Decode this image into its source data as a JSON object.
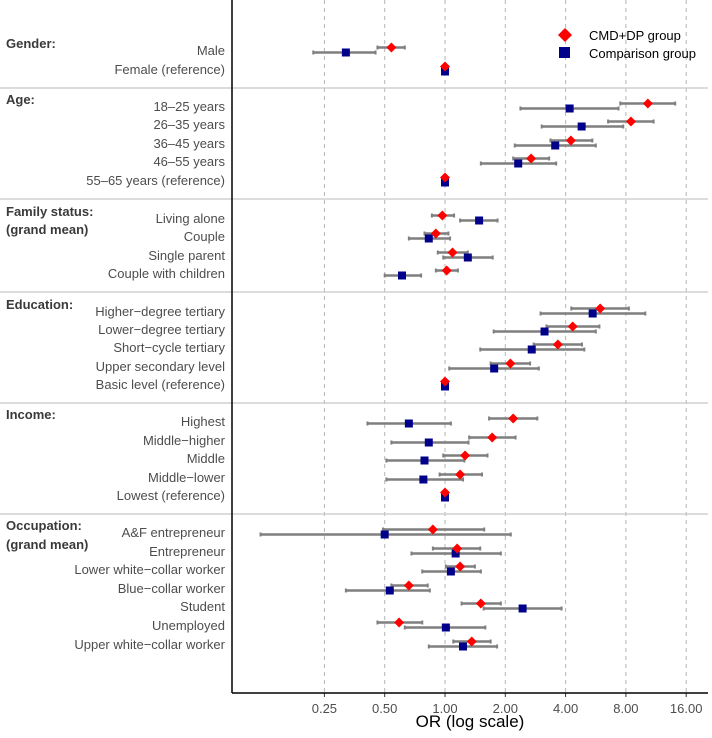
{
  "chart_data": {
    "type": "forest",
    "xlabel": "OR (log scale)",
    "xscale": "log2",
    "xlim": [
      0.11,
      17
    ],
    "xticks": [
      0.25,
      0.5,
      1,
      2,
      4,
      8,
      16
    ],
    "xtick_labels": [
      "0.25",
      "0.50",
      "1.00",
      "2.00",
      "4.00",
      "8.00",
      "16.00"
    ],
    "grid": "vertical dashed",
    "legend": {
      "placement": "top-right",
      "entries": [
        {
          "name": "CMD+DP group",
          "color": "#ff0000",
          "marker": "diamond"
        },
        {
          "name": "Comparison group",
          "color": "#00008b",
          "marker": "square"
        }
      ]
    },
    "groups": [
      {
        "title": "Gender:",
        "subtitle": "",
        "rows": [
          {
            "label": "Male",
            "cmd": [
              0.54,
              0.46,
              0.63
            ],
            "comp": [
              0.32,
              0.22,
              0.45
            ]
          },
          {
            "label": "Female (reference)",
            "cmd": [
              1,
              1,
              1
            ],
            "comp": [
              1,
              1,
              1
            ]
          }
        ]
      },
      {
        "title": "Age:",
        "subtitle": "",
        "rows": [
          {
            "label": "18–25 years",
            "cmd": [
              10.3,
              7.5,
              14.1
            ],
            "comp": [
              4.19,
              2.38,
              7.35
            ]
          },
          {
            "label": "26–35 years",
            "cmd": [
              8.48,
              6.52,
              11.0
            ],
            "comp": [
              4.81,
              3.04,
              7.76
            ]
          },
          {
            "label": "36–45 years",
            "cmd": [
              4.25,
              3.36,
              5.44
            ],
            "comp": [
              3.55,
              2.23,
              5.66
            ]
          },
          {
            "label": "46–55 years",
            "cmd": [
              2.69,
              2.19,
              3.31
            ],
            "comp": [
              2.32,
              1.51,
              3.59
            ]
          },
          {
            "label": "55–65 years (reference)",
            "cmd": [
              1,
              1,
              1
            ],
            "comp": [
              1,
              1,
              1
            ]
          }
        ]
      },
      {
        "title": "Family status:",
        "subtitle": "(grand mean)",
        "rows": [
          {
            "label": "Living alone",
            "cmd": [
              0.97,
              0.86,
              1.11
            ],
            "comp": [
              1.48,
              1.19,
              1.83
            ]
          },
          {
            "label": "Couple",
            "cmd": [
              0.9,
              0.79,
              1.04
            ],
            "comp": [
              0.83,
              0.66,
              1.06
            ]
          },
          {
            "label": "Single parent",
            "cmd": [
              1.09,
              0.92,
              1.3
            ],
            "comp": [
              1.3,
              0.98,
              1.73
            ]
          },
          {
            "label": "Couple with children",
            "cmd": [
              1.02,
              0.9,
              1.16
            ],
            "comp": [
              0.61,
              0.5,
              0.76
            ]
          }
        ]
      },
      {
        "title": "Education:",
        "subtitle": "",
        "rows": [
          {
            "label": "Higher−degree tertiary",
            "cmd": [
              5.95,
              4.27,
              8.28
            ],
            "comp": [
              5.46,
              3.0,
              10.0
            ]
          },
          {
            "label": "Lower−degree tertiary",
            "cmd": [
              4.34,
              3.21,
              5.9
            ],
            "comp": [
              3.14,
              1.75,
              5.66
            ]
          },
          {
            "label": "Short−cycle tertiary",
            "cmd": [
              3.66,
              2.77,
              4.83
            ],
            "comp": [
              2.71,
              1.5,
              4.96
            ]
          },
          {
            "label": "Upper secondary level",
            "cmd": [
              2.12,
              1.69,
              2.66
            ],
            "comp": [
              1.76,
              1.05,
              2.94
            ]
          },
          {
            "label": "Basic level (reference)",
            "cmd": [
              1,
              1,
              1
            ],
            "comp": [
              1,
              1,
              1
            ]
          }
        ]
      },
      {
        "title": "Income:",
        "subtitle": "",
        "rows": [
          {
            "label": "Highest",
            "cmd": [
              2.19,
              1.66,
              2.89
            ],
            "comp": [
              0.66,
              0.41,
              1.07
            ]
          },
          {
            "label": "Middle−higher",
            "cmd": [
              1.72,
              1.32,
              2.25
            ],
            "comp": [
              0.83,
              0.54,
              1.31
            ]
          },
          {
            "label": "Middle",
            "cmd": [
              1.26,
              0.98,
              1.63
            ],
            "comp": [
              0.79,
              0.51,
              1.25
            ]
          },
          {
            "label": "Middle−lower",
            "cmd": [
              1.19,
              0.94,
              1.53
            ],
            "comp": [
              0.78,
              0.51,
              1.23
            ]
          },
          {
            "label": "Lowest (reference)",
            "cmd": [
              1,
              1,
              1
            ],
            "comp": [
              1,
              1,
              1
            ]
          }
        ]
      },
      {
        "title": "Occupation:",
        "subtitle": "(grand mean)",
        "rows": [
          {
            "label": "A&F entrepreneur",
            "cmd": [
              0.87,
              0.49,
              1.57
            ],
            "comp": [
              0.5,
              0.12,
              2.13
            ]
          },
          {
            "label": "Entrepreneur",
            "cmd": [
              1.15,
              0.87,
              1.5
            ],
            "comp": [
              1.13,
              0.68,
              1.9
            ]
          },
          {
            "label": "Lower white−collar worker",
            "cmd": [
              1.19,
              1.01,
              1.41
            ],
            "comp": [
              1.07,
              0.77,
              1.51
            ]
          },
          {
            "label": "Blue−collar worker",
            "cmd": [
              0.66,
              0.54,
              0.82
            ],
            "comp": [
              0.53,
              0.32,
              0.84
            ]
          },
          {
            "label": "Student",
            "cmd": [
              1.51,
              1.21,
              1.9
            ],
            "comp": [
              2.44,
              1.56,
              3.82
            ]
          },
          {
            "label": "Unemployed",
            "cmd": [
              0.59,
              0.46,
              0.77
            ],
            "comp": [
              1.01,
              0.63,
              1.59
            ]
          },
          {
            "label": "Upper white−collar worker",
            "cmd": [
              1.36,
              1.1,
              1.69
            ],
            "comp": [
              1.23,
              0.83,
              1.82
            ]
          }
        ]
      }
    ]
  }
}
